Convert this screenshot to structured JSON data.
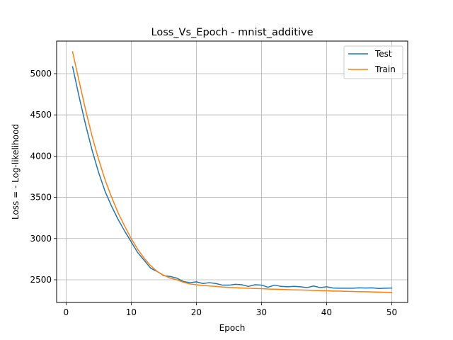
{
  "chart_data": {
    "type": "line",
    "title": "Loss_Vs_Epoch - mnist_additive",
    "xlabel": "Epoch",
    "ylabel": "Loss = - Log-likelihood",
    "xlim": [
      -1.45,
      52.45
    ],
    "ylim": [
      2225,
      5395
    ],
    "xticks": [
      0,
      10,
      20,
      30,
      40,
      50
    ],
    "yticks": [
      2500,
      3000,
      3500,
      4000,
      4500,
      5000
    ],
    "grid": true,
    "legend_position": "top-right",
    "x": [
      1,
      2,
      3,
      4,
      5,
      6,
      7,
      8,
      9,
      10,
      11,
      12,
      13,
      14,
      15,
      16,
      17,
      18,
      19,
      20,
      21,
      22,
      23,
      24,
      25,
      26,
      27,
      28,
      29,
      30,
      31,
      32,
      33,
      34,
      35,
      36,
      37,
      38,
      39,
      40,
      41,
      42,
      43,
      44,
      45,
      46,
      47,
      48,
      49,
      50
    ],
    "series": [
      {
        "name": "Test",
        "color": "#1f77b4",
        "values": [
          5085,
          4720,
          4380,
          4070,
          3800,
          3570,
          3390,
          3230,
          3090,
          2960,
          2830,
          2735,
          2640,
          2600,
          2550,
          2540,
          2520,
          2480,
          2465,
          2475,
          2455,
          2465,
          2455,
          2435,
          2435,
          2445,
          2440,
          2420,
          2440,
          2435,
          2410,
          2435,
          2420,
          2415,
          2420,
          2415,
          2405,
          2425,
          2405,
          2415,
          2400,
          2398,
          2398,
          2398,
          2402,
          2400,
          2402,
          2395,
          2398,
          2400
        ]
      },
      {
        "name": "Train",
        "color": "#ff7f0e",
        "values": [
          5265,
          4910,
          4560,
          4240,
          3960,
          3710,
          3500,
          3310,
          3150,
          3000,
          2870,
          2760,
          2670,
          2600,
          2555,
          2520,
          2500,
          2470,
          2450,
          2440,
          2432,
          2425,
          2420,
          2412,
          2408,
          2404,
          2400,
          2398,
          2395,
          2392,
          2388,
          2386,
          2384,
          2381,
          2378,
          2376,
          2374,
          2371,
          2369,
          2367,
          2364,
          2362,
          2360,
          2358,
          2356,
          2355,
          2353,
          2351,
          2349,
          2347
        ]
      }
    ]
  }
}
